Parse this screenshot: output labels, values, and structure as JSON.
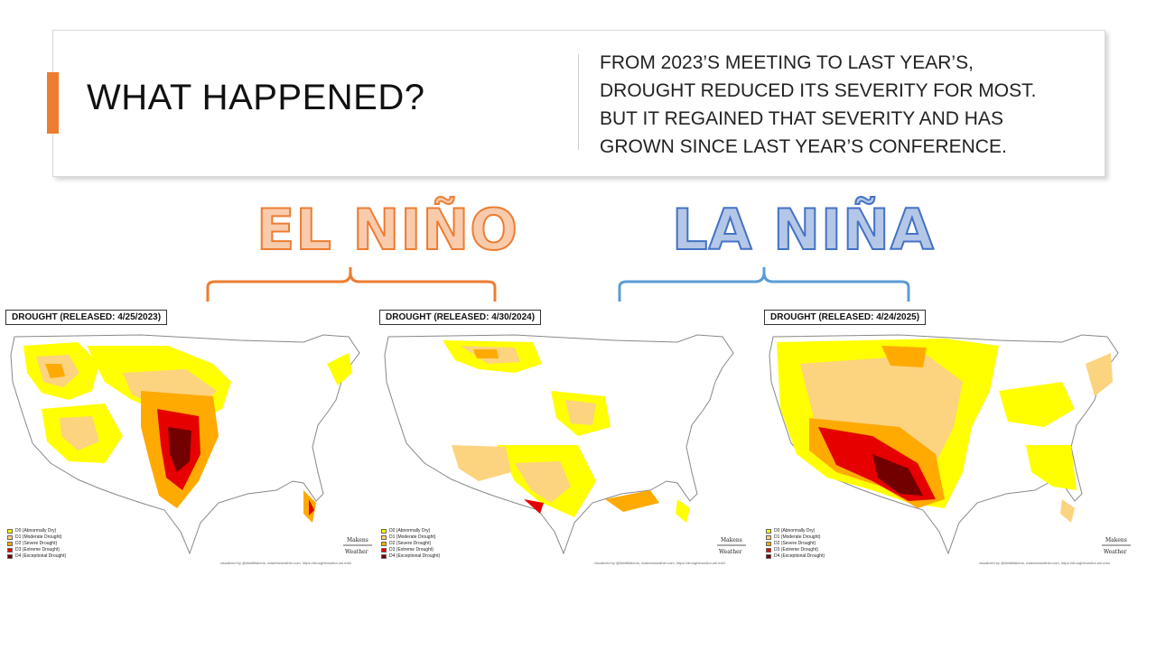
{
  "slide": {
    "title": "WHAT HAPPENED?",
    "summary_lines": [
      "FROM 2023’S MEETING TO LAST YEAR’S,",
      "DROUGHT REDUCED ITS SEVERITY FOR MOST.",
      "BUT IT REGAINED THAT SEVERITY AND HAS",
      "GROWN SINCE LAST YEAR’S CONFERENCE."
    ],
    "phases": [
      {
        "label": "EL NIÑO",
        "color": "#ed7d31",
        "fill": "#f8cbad"
      },
      {
        "label": "LA NIÑA",
        "color": "#4472c4",
        "fill": "#b4c7e7"
      }
    ],
    "accent_color": "#ed7d31"
  },
  "maps": [
    {
      "release_label": "DROUGHT (RELEASED: 4/25/2023)"
    },
    {
      "release_label": "DROUGHT (RELEASED: 4/30/2024)"
    },
    {
      "release_label": "DROUGHT (RELEASED: 4/24/2025)"
    }
  ],
  "legend": [
    {
      "label": "D0 (Abnormally Dry)",
      "color": "#ffff00"
    },
    {
      "label": "D1 (Moderate Drought)",
      "color": "#fcd37f"
    },
    {
      "label": "D2 (Severe Drought)",
      "color": "#ffaa00"
    },
    {
      "label": "D3 (Extreme Drought)",
      "color": "#e60000"
    },
    {
      "label": "D4 (Exceptional Drought)",
      "color": "#730000"
    }
  ],
  "credit": "visualized by @MattMakens, makensweather.com, https://droughtmonitor.unl.edu/",
  "logo": {
    "line1": "Makens",
    "line2": "Weather"
  }
}
